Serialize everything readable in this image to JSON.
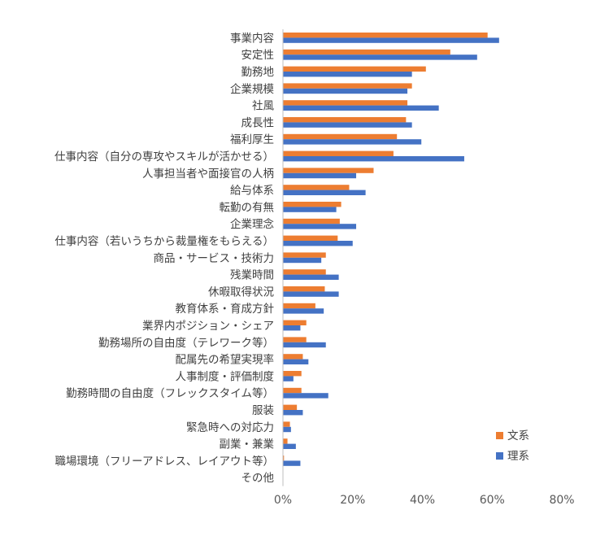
{
  "chart_data": {
    "type": "bar",
    "orientation": "horizontal",
    "categories": [
      "事業内容",
      "安定性",
      "勤務地",
      "企業規模",
      "社風",
      "成長性",
      "福利厚生",
      "仕事内容（自分の専攻やスキルが活かせる）",
      "人事担当者や面接官の人柄",
      "給与体系",
      "転勤の有無",
      "企業理念",
      "仕事内容（若いうちから裁量権をもらえる）",
      "商品・サービス・技術力",
      "残業時間",
      "休暇取得状況",
      "教育体系・育成方針",
      "業界内ポジション・シェア",
      "勤務場所の自由度（テレワーク等）",
      "配属先の希望実現率",
      "人事制度・評価制度",
      "勤務時間の自由度（フレックスタイム等）",
      "服装",
      "緊急時への対応力",
      "副業・兼業",
      "職場環境（フリーアドレス、レイアウト等）",
      "その他"
    ],
    "series": [
      {
        "name": "文系",
        "color": "#ED7D31",
        "values": [
          58.7,
          48.0,
          41.0,
          37.0,
          35.7,
          35.3,
          32.7,
          31.7,
          26.0,
          19.0,
          16.7,
          16.3,
          15.7,
          12.3,
          12.3,
          12.0,
          9.3,
          6.7,
          6.7,
          5.7,
          5.3,
          5.3,
          4.0,
          2.0,
          1.3,
          0.3,
          0.0
        ]
      },
      {
        "name": "理系",
        "color": "#4472C4",
        "values": [
          62.0,
          55.7,
          37.0,
          35.7,
          44.7,
          37.0,
          39.7,
          52.0,
          21.0,
          23.7,
          15.3,
          21.0,
          20.0,
          11.0,
          16.0,
          16.0,
          11.7,
          5.0,
          12.3,
          7.3,
          3.0,
          13.0,
          5.7,
          2.3,
          3.7,
          5.0,
          0.0
        ]
      }
    ],
    "xlim": [
      0,
      80
    ],
    "xticks": [
      "0%",
      "20%",
      "40%",
      "60%",
      "80%"
    ],
    "xtick_values": [
      0,
      20,
      40,
      60,
      80
    ],
    "legend_placement": "bottom-right",
    "grid": false
  }
}
